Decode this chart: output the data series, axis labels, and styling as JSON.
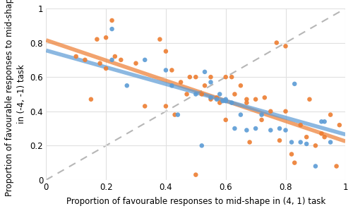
{
  "xlabel": "Proportion of favourable responses to mid-shape in (4, 1) task",
  "ylabel": "Proportion of favourable responses to mid-shape\nin (-4, -1) task",
  "xlim": [
    0,
    1
  ],
  "ylim": [
    0,
    1
  ],
  "xticks": [
    0,
    0.2,
    0.4,
    0.6,
    0.8,
    1.0
  ],
  "yticks": [
    0,
    0.2,
    0.4,
    0.6,
    0.8,
    1.0
  ],
  "blue_color": "#5B9BD5",
  "orange_color": "#ED7D31",
  "line_grey": "#AAAAAA",
  "blue_x": [
    0.22,
    0.22,
    0.27,
    0.33,
    0.4,
    0.42,
    0.44,
    0.5,
    0.52,
    0.53,
    0.55,
    0.55,
    0.57,
    0.58,
    0.59,
    0.6,
    0.6,
    0.62,
    0.63,
    0.65,
    0.67,
    0.7,
    0.72,
    0.75,
    0.78,
    0.8,
    0.82,
    0.83,
    0.85,
    0.87,
    0.9,
    0.92,
    0.93,
    0.95
  ],
  "blue_y": [
    0.88,
    0.7,
    0.55,
    0.7,
    0.64,
    0.55,
    0.38,
    0.5,
    0.2,
    0.63,
    0.57,
    0.48,
    0.47,
    0.5,
    0.46,
    0.47,
    0.46,
    0.45,
    0.3,
    0.38,
    0.29,
    0.3,
    0.38,
    0.29,
    0.3,
    0.29,
    0.22,
    0.56,
    0.22,
    0.21,
    0.08,
    0.34,
    0.34,
    0.22
  ],
  "orange_x": [
    0.1,
    0.13,
    0.15,
    0.17,
    0.18,
    0.2,
    0.2,
    0.22,
    0.23,
    0.25,
    0.3,
    0.33,
    0.38,
    0.4,
    0.4,
    0.42,
    0.43,
    0.45,
    0.47,
    0.48,
    0.5,
    0.5,
    0.52,
    0.53,
    0.55,
    0.55,
    0.57,
    0.58,
    0.6,
    0.6,
    0.62,
    0.63,
    0.65,
    0.67,
    0.67,
    0.68,
    0.7,
    0.72,
    0.73,
    0.75,
    0.77,
    0.78,
    0.8,
    0.8,
    0.82,
    0.83,
    0.85,
    0.87,
    0.88,
    0.9,
    0.92,
    0.93,
    0.95,
    0.97,
    0.98
  ],
  "orange_y": [
    0.72,
    0.7,
    0.47,
    0.82,
    0.68,
    0.65,
    0.83,
    0.93,
    0.72,
    0.7,
    0.68,
    0.43,
    0.82,
    0.75,
    0.43,
    0.64,
    0.38,
    0.57,
    0.5,
    0.6,
    0.6,
    0.03,
    0.5,
    0.55,
    0.6,
    0.47,
    0.48,
    0.45,
    0.6,
    0.35,
    0.6,
    0.5,
    0.55,
    0.47,
    0.45,
    0.22,
    0.47,
    0.35,
    0.48,
    0.4,
    0.8,
    0.23,
    0.4,
    0.78,
    0.15,
    0.1,
    0.32,
    0.25,
    0.47,
    0.2,
    0.27,
    0.25,
    0.38,
    0.08,
    0.32
  ],
  "blue_slope": -0.49,
  "blue_intercept": 0.755,
  "orange_slope": -0.59,
  "orange_intercept": 0.815,
  "figsize": [
    5.0,
    2.99
  ],
  "dpi": 100,
  "marker_size": 22,
  "marker_alpha": 0.9,
  "line_width": 4.0,
  "line_alpha": 0.7
}
